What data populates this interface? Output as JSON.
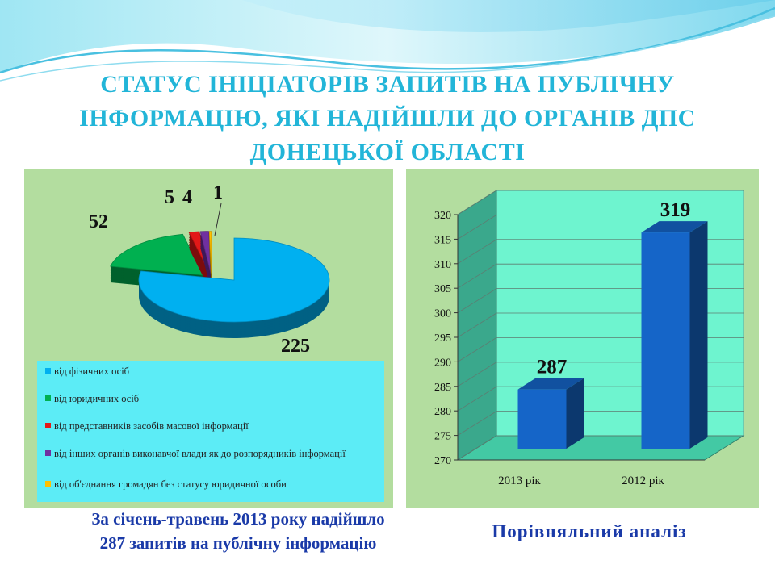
{
  "slide": {
    "title_lines": [
      "СТАТУС ІНІЦІАТОРІВ ЗАПИТІВ НА ПУБЛІЧНУ",
      "ІНФОРМАЦІЮ,  ЯКІ НАДІЙШЛИ ДО ОРГАНІВ ДПС",
      "ДОНЕЦЬКОЇ ОБЛАСТІ"
    ],
    "caption_left_lines": [
      "За січень-травень 2013 року надійшло",
      "287 запитів на публічну інформацію"
    ],
    "caption_right": "Порівняльний аналіз"
  },
  "colors": {
    "title": "#22b5d8",
    "caption": "#1a3aa8",
    "panel_bg": "#b3dd9f",
    "legend_bg": "#5cecf6"
  },
  "chart_data": [
    {
      "type": "pie",
      "style": "3d-exploded",
      "labels": [
        "від фізичних осіб",
        "від юридичних осіб",
        "від представників засобів масової інформації",
        "від інших органів виконавчої влади як до розпорядників інформації",
        "від об'єднання громадян без статусу юридичної особи"
      ],
      "values": [
        225,
        52,
        5,
        4,
        1
      ],
      "colors": [
        "#00b0f0",
        "#00b050",
        "#e21818",
        "#7030a0",
        "#ffc000"
      ],
      "legend_position": "bottom"
    },
    {
      "type": "bar",
      "style": "3d-column",
      "categories": [
        "2013 рік",
        "2012 рік"
      ],
      "values": [
        287,
        319
      ],
      "ylim": [
        270,
        320
      ],
      "yticks": [
        270,
        275,
        280,
        285,
        290,
        295,
        300,
        305,
        310,
        315,
        320
      ],
      "grid": true,
      "bar_color": "#1565c8"
    }
  ]
}
